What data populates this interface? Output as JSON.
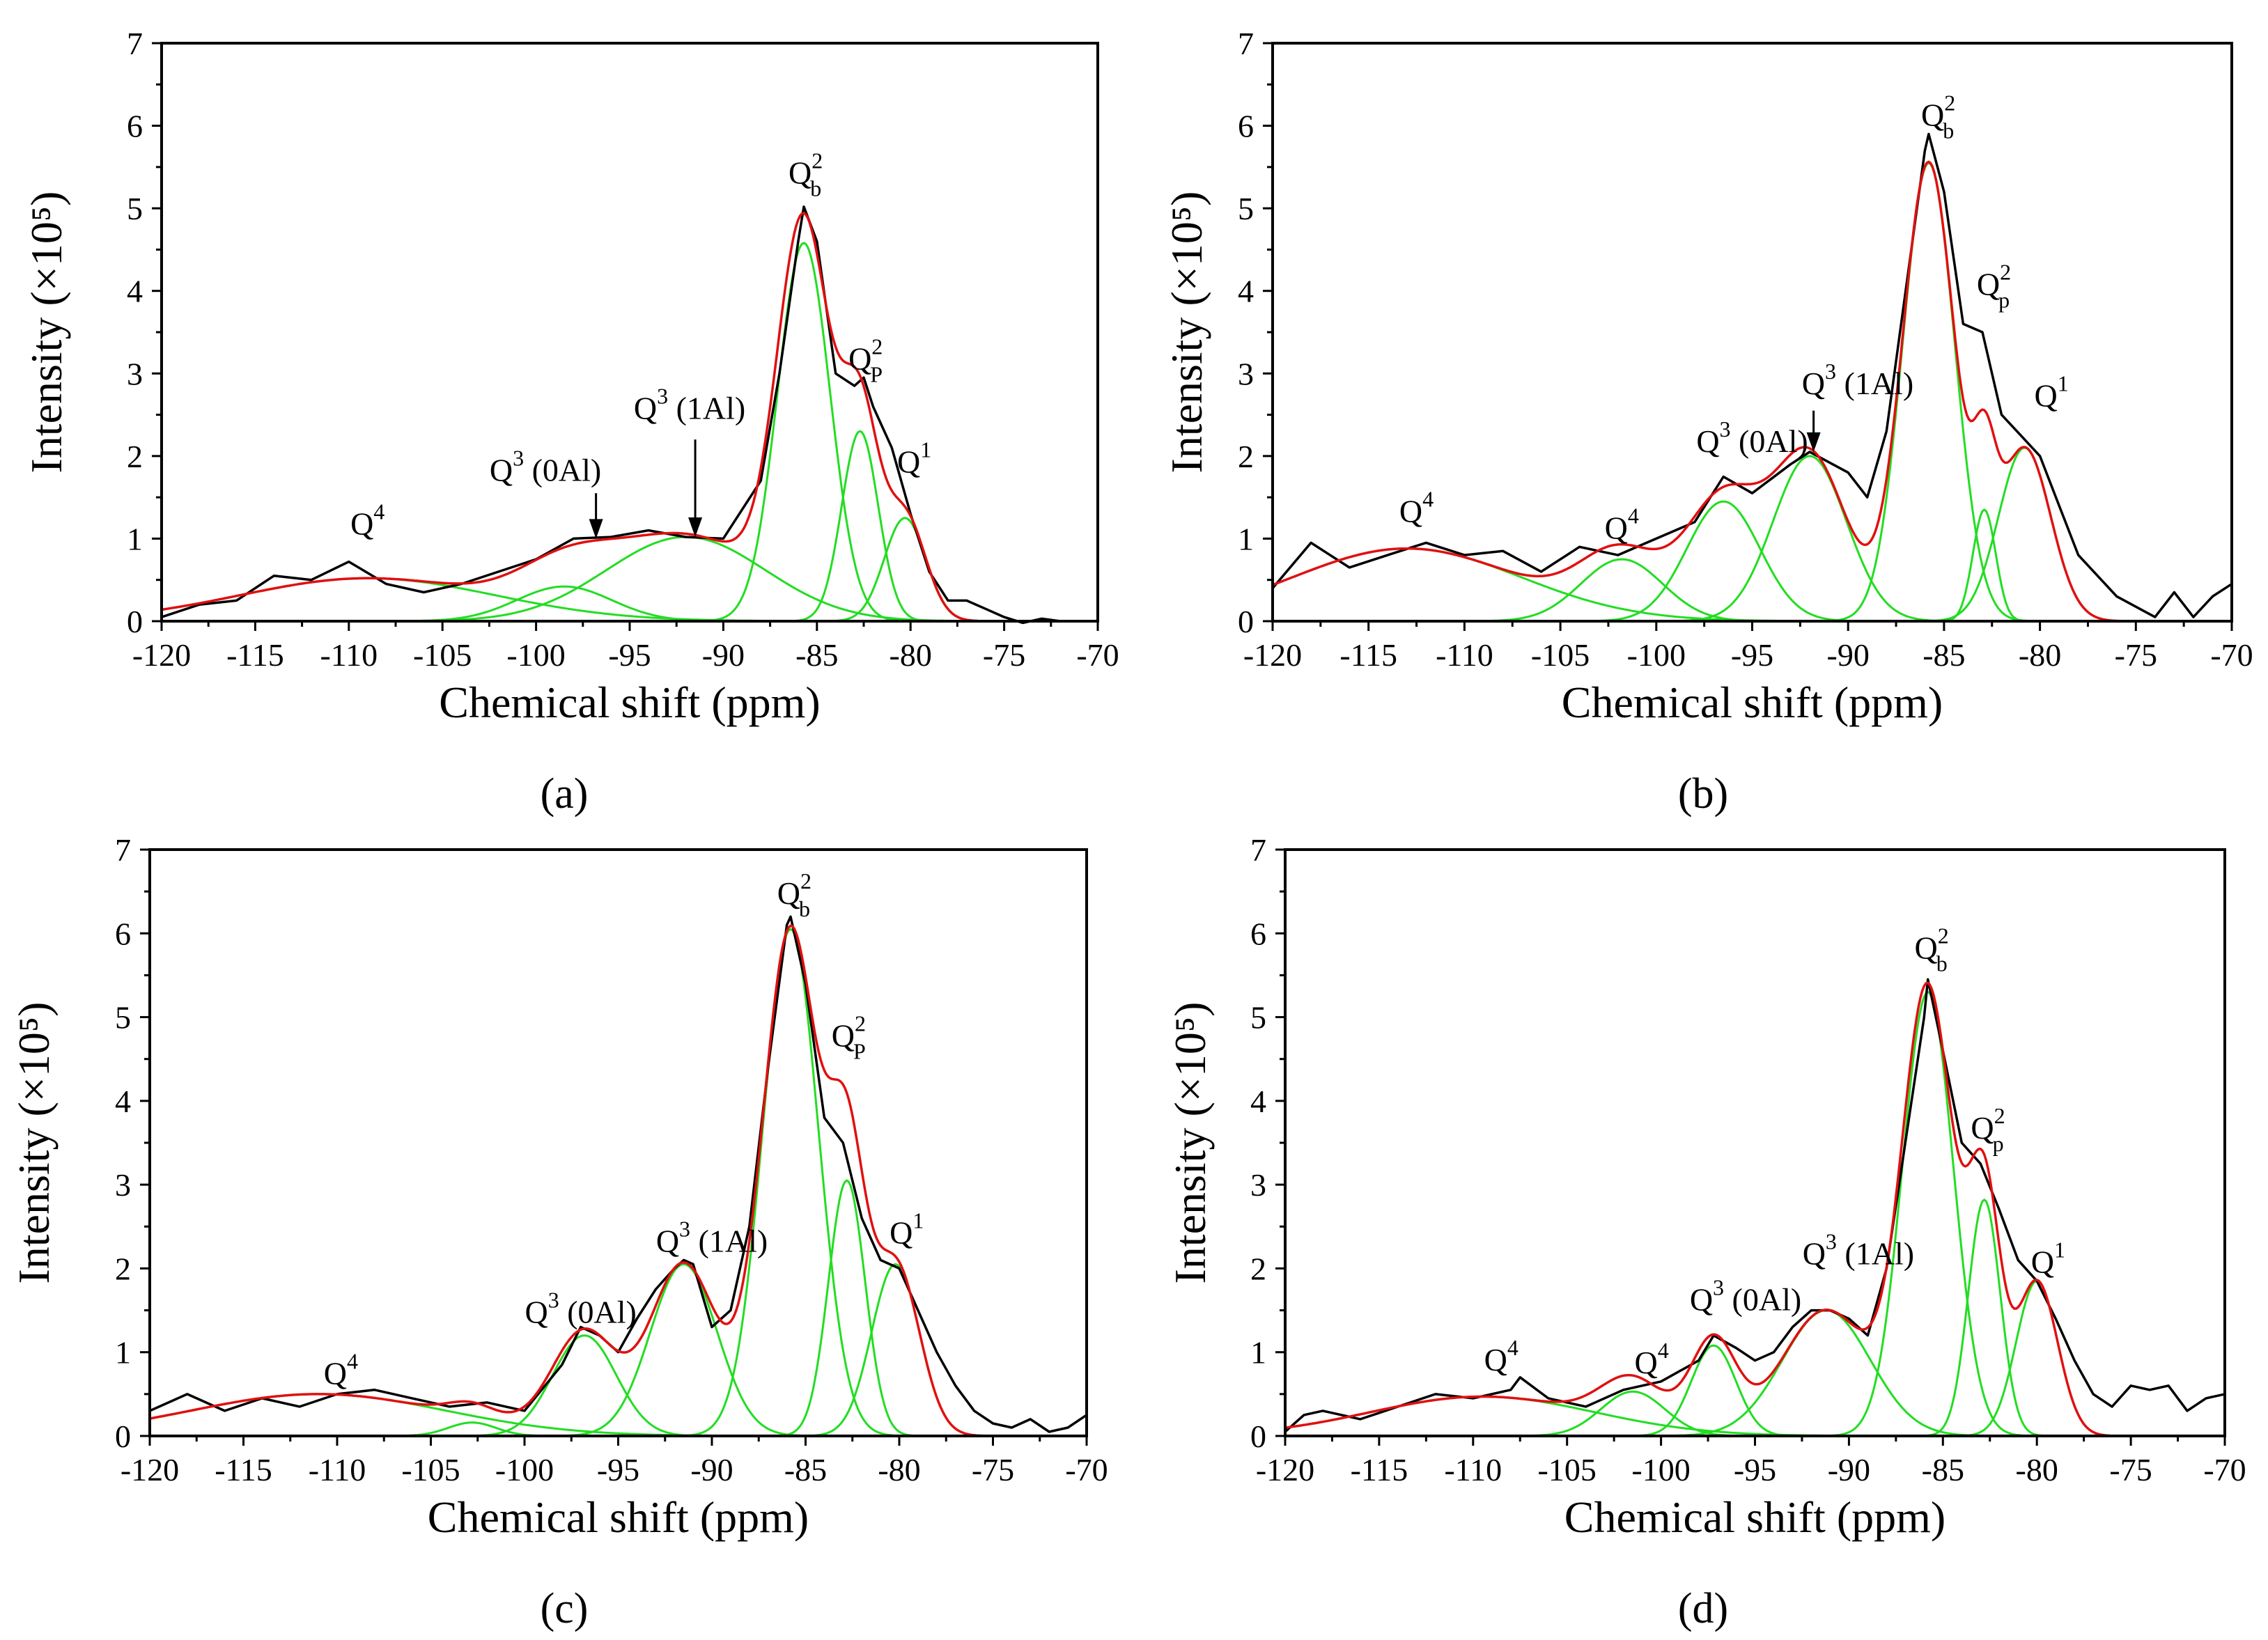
{
  "figure": {
    "captions": [
      "(a)",
      "(b)",
      "(c)",
      "(d)"
    ]
  },
  "colors": {
    "experimental": "#000000",
    "fit": "#e01010",
    "component": "#22dd22",
    "axis": "#000000"
  },
  "chart_data": [
    {
      "type": "line",
      "panel": "(a)",
      "xlabel": "Chemical shift (ppm)",
      "ylabel": "Intensity (×10⁵)",
      "xlim": [
        -120,
        -70
      ],
      "ylim": [
        0,
        7
      ],
      "x_reversed": false,
      "x_ticks": [
        -120,
        -115,
        -110,
        -105,
        -100,
        -95,
        -90,
        -85,
        -80,
        -75,
        -70
      ],
      "y_ticks": [
        0,
        1,
        2,
        3,
        4,
        5,
        6,
        7
      ],
      "series": [
        {
          "role": "component",
          "peaks": [
            {
              "center": -109,
              "amplitude": 0.52,
              "fwhm": 16
            },
            {
              "center": -98.5,
              "amplitude": 0.42,
              "fwhm": 6
            },
            {
              "center": -92,
              "amplitude": 1.02,
              "fwhm": 10
            },
            {
              "center": -85.7,
              "amplitude": 4.58,
              "fwhm": 3.3
            },
            {
              "center": -82.7,
              "amplitude": 2.3,
              "fwhm": 2.3
            },
            {
              "center": -80.3,
              "amplitude": 1.25,
              "fwhm": 2.6
            }
          ]
        },
        {
          "role": "fit",
          "sum_of_components": true
        },
        {
          "role": "experimental",
          "x": [
            -120,
            -118,
            -116,
            -114,
            -112,
            -110,
            -108,
            -106,
            -104,
            -102,
            -100,
            -98,
            -96,
            -94,
            -92,
            -90,
            -88,
            -87,
            -86,
            -85.7,
            -85,
            -84,
            -83,
            -82.5,
            -82,
            -81,
            -80,
            -79,
            -78,
            -77,
            -76,
            -75,
            -74,
            -73,
            -72,
            -71,
            -70
          ],
          "y": [
            0.05,
            0.2,
            0.25,
            0.55,
            0.5,
            0.72,
            0.45,
            0.35,
            0.45,
            0.6,
            0.75,
            1.0,
            1.02,
            1.1,
            1.02,
            1.0,
            1.7,
            3.0,
            4.6,
            5.02,
            4.6,
            3.0,
            2.85,
            2.95,
            2.6,
            2.1,
            1.3,
            0.6,
            0.25,
            0.25,
            0.15,
            0.05,
            -0.02,
            0.03,
            0.0,
            0.0,
            0.0
          ]
        }
      ],
      "annotations": [
        {
          "label": "Q",
          "sup": "4",
          "x": -109,
          "y": 1.05
        },
        {
          "label": "Q",
          "sup": "3",
          "suffix": " (0Al)",
          "x": -99.5,
          "y": 1.7
        },
        {
          "label": "Q",
          "sup": "3",
          "suffix": " (1Al)",
          "x": -91.8,
          "y": 2.45
        },
        {
          "label": "Q",
          "sup": "2",
          "sub": "b",
          "x": -85.6,
          "y": 5.3
        },
        {
          "label": "Q",
          "sup": "2",
          "sub": "P",
          "x": -82.4,
          "y": 3.05
        },
        {
          "label": "Q",
          "sup": "1",
          "x": -79.8,
          "y": 1.8
        }
      ],
      "arrows": [
        {
          "x": -96.8,
          "y_from": 1.55,
          "y_to": 1.0
        },
        {
          "x": -91.5,
          "y_from": 2.2,
          "y_to": 1.02
        }
      ]
    },
    {
      "type": "line",
      "panel": "(b)",
      "xlabel": "Chemical shift (ppm)",
      "ylabel": "Intensity (×10⁵)",
      "xlim": [
        -120,
        -70
      ],
      "ylim": [
        0,
        7
      ],
      "x_ticks": [
        -120,
        -115,
        -110,
        -105,
        -100,
        -95,
        -90,
        -85,
        -80,
        -75,
        -70
      ],
      "y_ticks": [
        0,
        1,
        2,
        3,
        4,
        5,
        6,
        7
      ],
      "series": [
        {
          "role": "component",
          "peaks": [
            {
              "center": -113,
              "amplitude": 0.88,
              "fwhm": 14
            },
            {
              "center": -101.8,
              "amplitude": 0.75,
              "fwhm": 5
            },
            {
              "center": -96.5,
              "amplitude": 1.45,
              "fwhm": 4.5
            },
            {
              "center": -92,
              "amplitude": 2.0,
              "fwhm": 4.5
            },
            {
              "center": -85.8,
              "amplitude": 5.55,
              "fwhm": 3.2
            },
            {
              "center": -82.9,
              "amplitude": 1.35,
              "fwhm": 1.4
            },
            {
              "center": -80.8,
              "amplitude": 2.1,
              "fwhm": 3.2
            }
          ]
        },
        {
          "role": "fit",
          "sum_of_components": true
        },
        {
          "role": "experimental",
          "x": [
            -120,
            -118,
            -116,
            -114,
            -112,
            -110,
            -108,
            -106,
            -104,
            -102,
            -100,
            -98,
            -96.5,
            -95,
            -93,
            -92,
            -90,
            -89,
            -88,
            -87,
            -86,
            -85.8,
            -85,
            -84,
            -83,
            -82,
            -81,
            -80,
            -79,
            -78,
            -76,
            -74,
            -73,
            -72,
            -71,
            -70
          ],
          "y": [
            0.4,
            0.95,
            0.65,
            0.8,
            0.95,
            0.8,
            0.85,
            0.6,
            0.9,
            0.8,
            1.0,
            1.2,
            1.75,
            1.55,
            1.9,
            2.05,
            1.8,
            1.5,
            2.3,
            4.0,
            5.7,
            5.9,
            5.2,
            3.6,
            3.5,
            2.5,
            2.25,
            2.0,
            1.4,
            0.8,
            0.3,
            0.05,
            0.35,
            0.05,
            0.3,
            0.45
          ]
        }
      ],
      "annotations": [
        {
          "label": "Q",
          "sup": "4",
          "x": -112.5,
          "y": 1.2
        },
        {
          "label": "Q",
          "sup": "4",
          "x": -101.8,
          "y": 1.0
        },
        {
          "label": "Q",
          "sup": "3",
          "suffix": " (0Al)",
          "x": -95,
          "y": 2.05
        },
        {
          "label": "Q",
          "sup": "3",
          "suffix": " (1Al)",
          "x": -89.5,
          "y": 2.75
        },
        {
          "label": "Q",
          "sup": "2",
          "sub": "b",
          "x": -85.3,
          "y": 6.0
        },
        {
          "label": "Q",
          "sup": "2",
          "sub": "p",
          "x": -82.4,
          "y": 3.95
        },
        {
          "label": "Q",
          "sup": "1",
          "x": -79.4,
          "y": 2.6
        }
      ],
      "arrows": [
        {
          "x": -91.8,
          "y_from": 2.55,
          "y_to": 2.05
        }
      ]
    },
    {
      "type": "line",
      "panel": "(c)",
      "xlabel": "Chemical shift (ppm)",
      "ylabel": "Intensity (×10⁵)",
      "xlim": [
        -120,
        -70
      ],
      "ylim": [
        0,
        7
      ],
      "x_ticks": [
        -120,
        -115,
        -110,
        -105,
        -100,
        -95,
        -90,
        -85,
        -80,
        -75,
        -70
      ],
      "y_ticks": [
        0,
        1,
        2,
        3,
        4,
        5,
        6,
        7
      ],
      "series": [
        {
          "role": "component",
          "peaks": [
            {
              "center": -111,
              "amplitude": 0.5,
              "fwhm": 16
            },
            {
              "center": -102.8,
              "amplitude": 0.16,
              "fwhm": 3
            },
            {
              "center": -96.8,
              "amplitude": 1.2,
              "fwhm": 4
            },
            {
              "center": -91.5,
              "amplitude": 2.05,
              "fwhm": 4.2
            },
            {
              "center": -85.8,
              "amplitude": 6.05,
              "fwhm": 3.5
            },
            {
              "center": -82.8,
              "amplitude": 3.05,
              "fwhm": 2.3
            },
            {
              "center": -80.2,
              "amplitude": 2.05,
              "fwhm": 3.0
            }
          ]
        },
        {
          "role": "fit",
          "sum_of_components": true
        },
        {
          "role": "experimental",
          "x": [
            -120,
            -118,
            -116,
            -114,
            -112,
            -110,
            -108,
            -106,
            -104,
            -102,
            -100,
            -98,
            -97,
            -96,
            -95,
            -94,
            -93,
            -92,
            -91.5,
            -91,
            -90,
            -89,
            -88,
            -87,
            -86,
            -85.8,
            -85,
            -84,
            -83,
            -82,
            -81,
            -80,
            -79,
            -78,
            -77,
            -76,
            -75,
            -74,
            -73,
            -72,
            -71,
            -70
          ],
          "y": [
            0.3,
            0.5,
            0.3,
            0.45,
            0.35,
            0.5,
            0.55,
            0.45,
            0.35,
            0.4,
            0.3,
            0.85,
            1.3,
            1.2,
            1.0,
            1.4,
            1.75,
            2.0,
            2.1,
            2.05,
            1.3,
            1.5,
            2.5,
            4.4,
            6.1,
            6.2,
            5.4,
            3.8,
            3.5,
            2.6,
            2.1,
            2.0,
            1.5,
            1.0,
            0.6,
            0.3,
            0.15,
            0.1,
            0.2,
            0.05,
            0.1,
            0.25
          ]
        }
      ],
      "annotations": [
        {
          "label": "Q",
          "sup": "4",
          "x": -109.8,
          "y": 0.62
        },
        {
          "label": "Q",
          "sup": "3",
          "suffix": " (0Al)",
          "x": -97,
          "y": 1.35
        },
        {
          "label": "Q",
          "sup": "3",
          "suffix": " (1Al)",
          "x": -90,
          "y": 2.2
        },
        {
          "label": "Q",
          "sup": "2",
          "sub": "b",
          "x": -85.6,
          "y": 6.35
        },
        {
          "label": "Q",
          "sup": "2",
          "sub": "P",
          "x": -82.7,
          "y": 4.65
        },
        {
          "label": "Q",
          "sup": "1",
          "x": -79.6,
          "y": 2.3
        }
      ],
      "arrows": []
    },
    {
      "type": "line",
      "panel": "(d)",
      "xlabel": "Chemical shift (ppm)",
      "ylabel": "Intensity (×10⁵)",
      "xlim": [
        -120,
        -70
      ],
      "ylim": [
        0,
        7
      ],
      "x_ticks": [
        -120,
        -115,
        -110,
        -105,
        -100,
        -95,
        -90,
        -85,
        -80,
        -75,
        -70
      ],
      "y_ticks": [
        0,
        1,
        2,
        3,
        4,
        5,
        6,
        7
      ],
      "series": [
        {
          "role": "component",
          "peaks": [
            {
              "center": -109.5,
              "amplitude": 0.47,
              "fwhm": 14
            },
            {
              "center": -101.5,
              "amplitude": 0.53,
              "fwhm": 4
            },
            {
              "center": -97.2,
              "amplitude": 1.08,
              "fwhm": 2.8
            },
            {
              "center": -91.2,
              "amplitude": 1.5,
              "fwhm": 5.5
            },
            {
              "center": -85.8,
              "amplitude": 5.3,
              "fwhm": 3.2
            },
            {
              "center": -82.8,
              "amplitude": 2.82,
              "fwhm": 2.0
            },
            {
              "center": -80,
              "amplitude": 1.85,
              "fwhm": 2.6
            }
          ]
        },
        {
          "role": "fit",
          "sum_of_components": true
        },
        {
          "role": "experimental",
          "x": [
            -120,
            -119,
            -118,
            -116,
            -114,
            -112,
            -110,
            -108,
            -107.5,
            -106,
            -104,
            -102,
            -100,
            -98,
            -97.2,
            -96,
            -95,
            -94,
            -93,
            -92,
            -91,
            -90,
            -89,
            -88,
            -87,
            -86,
            -85.8,
            -85,
            -84,
            -83,
            -82,
            -81,
            -80,
            -79,
            -78,
            -77,
            -76,
            -75,
            -74,
            -73,
            -72,
            -71,
            -70
          ],
          "y": [
            0.05,
            0.25,
            0.3,
            0.2,
            0.35,
            0.5,
            0.45,
            0.55,
            0.7,
            0.45,
            0.35,
            0.55,
            0.65,
            0.9,
            1.2,
            1.05,
            0.9,
            1.0,
            1.3,
            1.5,
            1.5,
            1.4,
            1.2,
            2.0,
            3.5,
            5.0,
            5.45,
            4.6,
            3.5,
            3.25,
            2.7,
            2.1,
            1.85,
            1.4,
            0.9,
            0.5,
            0.35,
            0.6,
            0.55,
            0.6,
            0.3,
            0.45,
            0.5
          ]
        }
      ],
      "annotations": [
        {
          "label": "Q",
          "sup": "4",
          "x": -108.5,
          "y": 0.78
        },
        {
          "label": "Q",
          "sup": "4",
          "x": -100.5,
          "y": 0.75
        },
        {
          "label": "Q",
          "sup": "3",
          "suffix": " (0Al)",
          "x": -95.5,
          "y": 1.5
        },
        {
          "label": "Q",
          "sup": "3",
          "suffix": " (1Al)",
          "x": -89.5,
          "y": 2.05
        },
        {
          "label": "Q",
          "sup": "2",
          "sub": "b",
          "x": -85.6,
          "y": 5.7
        },
        {
          "label": "Q",
          "sup": "2",
          "sub": "p",
          "x": -82.6,
          "y": 3.55
        },
        {
          "label": "Q",
          "sup": "1",
          "x": -79.4,
          "y": 1.95
        }
      ],
      "arrows": []
    }
  ]
}
